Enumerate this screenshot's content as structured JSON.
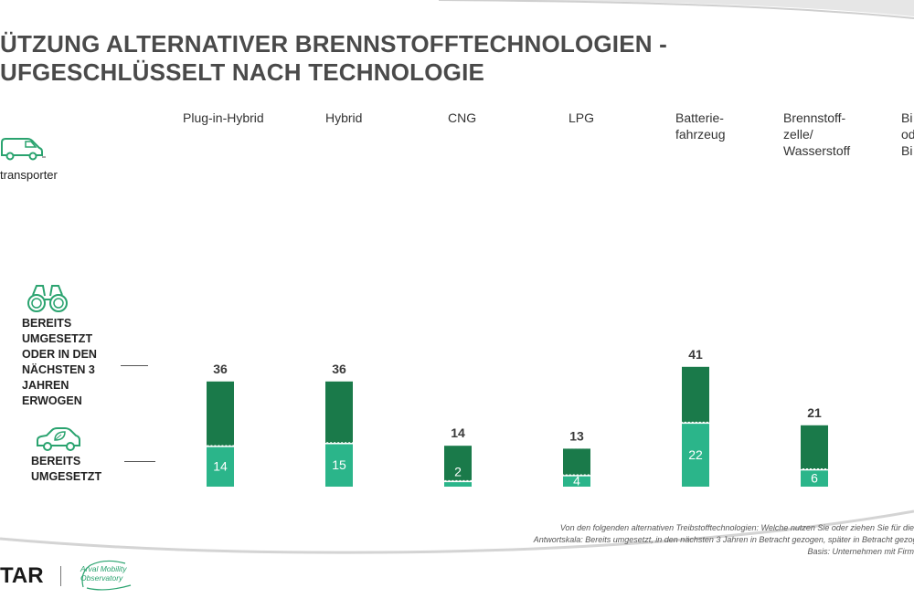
{
  "title_line1": "ÜTZUNG ALTERNATIVER BRENNSTOFFTECHNOLOGIEN -",
  "title_line2": "UFGESCHLÜSSELT NACH TECHNOLOGIE",
  "segment_label": "transporter",
  "legend": {
    "considered": "BEREITS\nUMGESETZT\nODER IN DEN\nNÄCHSTEN 3\nJAHREN\nERWOGEN",
    "implemented": "BEREITS\nUMGESETZT"
  },
  "icons": [
    "van-icon",
    "binoculars-icon",
    "car-leaf-icon"
  ],
  "colors": {
    "considered": "#1a7a4a",
    "implemented": "#2bb58a",
    "value_label": "#3a3a3a",
    "accent": "#2aa36f"
  },
  "chart_data": {
    "type": "bar",
    "categories": [
      "Plug-in-Hybrid",
      "Hybrid",
      "CNG",
      "LPG",
      "Batterie-\nfahrzeug",
      "Brennstoff-\nzelle/\nWasserstoff",
      "Bi\nod\nBi"
    ],
    "series": [
      {
        "name": "BEREITS UMGESETZT ODER IN DEN NÄCHSTEN 3 JAHREN ERWOGEN",
        "values": [
          36,
          36,
          14,
          13,
          41,
          21,
          null
        ]
      },
      {
        "name": "BEREITS UMGESETZT",
        "values": [
          14,
          15,
          2,
          4,
          22,
          6,
          null
        ]
      }
    ],
    "total_labels": [
      "36",
      "36",
      "14",
      "13",
      "41",
      "21",
      ""
    ],
    "inner_labels": [
      "14",
      "15",
      "2",
      "4",
      "22",
      "6",
      ""
    ]
  },
  "footnote": {
    "line1": "Von den folgenden alternativen Treibstofftechnologien: Welche nutzen Sie oder ziehen Sie für die Zukunf",
    "line2": "Antwortskala: Bereits umgesetzt, in den nächsten 3 Jahren in Betracht gezogen, später in Betracht gezogen, nic",
    "line3": "Basis: Unternehmen mit Firm"
  },
  "logo": {
    "company": "TAR",
    "arval_line1": "Arval Mobility",
    "arval_line2": "Observatory"
  }
}
